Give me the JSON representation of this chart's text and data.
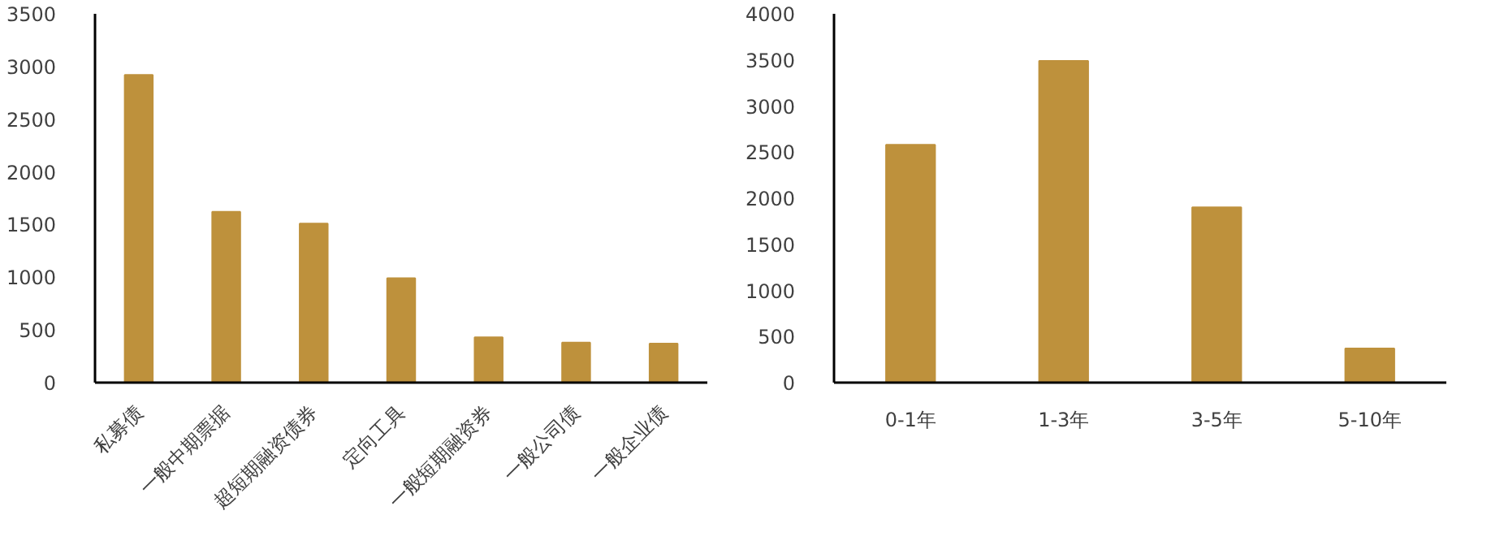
{
  "chart_data": [
    {
      "type": "bar",
      "categories": [
        "私募债",
        "一般中期票据",
        "超短期融资债券",
        "定向工具",
        "一般短期融资券",
        "一般公司债",
        "一般企业债"
      ],
      "values": [
        2920,
        1620,
        1510,
        990,
        430,
        380,
        370
      ],
      "color": "#be913c",
      "ylim": [
        0,
        3500
      ],
      "yticks": [
        0,
        500,
        1000,
        1500,
        2000,
        2500,
        3000,
        3500
      ]
    },
    {
      "type": "bar",
      "categories": [
        "0-1年",
        "1-3年",
        "3-5年",
        "5-10年"
      ],
      "values": [
        2580,
        3490,
        1900,
        370
      ],
      "color": "#be913c",
      "ylim": [
        0,
        4000
      ],
      "yticks": [
        0,
        500,
        1000,
        1500,
        2000,
        2500,
        3000,
        3500,
        4000
      ]
    }
  ]
}
